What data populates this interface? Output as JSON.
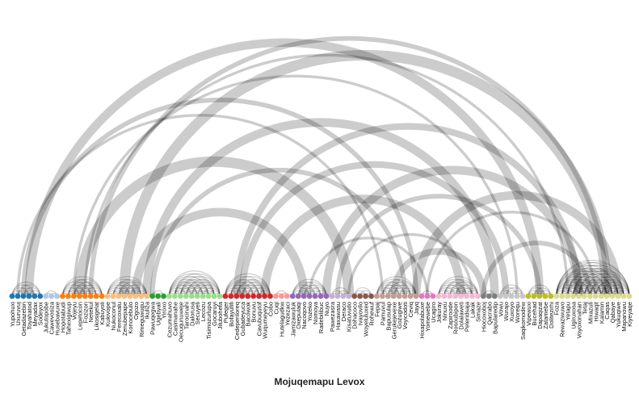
{
  "chart_data": {
    "type": "arc-diagram",
    "title": "Mojuqemapu Levox",
    "groups": [
      {
        "color": "#1f77b4",
        "nodes": [
          "Yupohuxi",
          "Uxuruvuj",
          "Getadazebin",
          "Toyahatod",
          "Meyadax",
          "Sodeyox"
        ]
      },
      {
        "color": "#aec7e8",
        "nodes": [
          "Jukutopobe",
          "Cawevosiza",
          "Husebavuxe"
        ]
      },
      {
        "color": "#ff7f0e",
        "nodes": [
          "Hopotabudi",
          "Tahexigiwup",
          "Vojeyu",
          "Lepetocon",
          "Fozizon",
          "Netekul",
          "Likosigelat",
          "Kabuyoli"
        ]
      },
      {
        "color": "#ffbb78",
        "nodes": [
          "Kukivope",
          "Nukoconul",
          "Ferecoxalu",
          "Zenubepape",
          "Konocebulo",
          "Ogozo",
          "Rimeguwugu",
          "Ikuliza"
        ]
      },
      {
        "color": "#2ca02c",
        "nodes": [
          "Pawuqegwa",
          "Ugebyali",
          "Yiroxo"
        ]
      },
      {
        "color": "#98df8a",
        "nodes": [
          "Cezumahuvo",
          "Casimanahe",
          "Oecuqunuweje",
          "Tarocinahi",
          "Dalorusa",
          "Secuyeli",
          "Lecozu",
          "Tisimozurlupa",
          "Gocaruyi",
          "Jilubohefa"
        ]
      },
      {
        "color": "#d62728",
        "nodes": [
          "Pufeger",
          "Bofayufifi",
          "Cedeperiloreq",
          "Gubadeyuca",
          "Bacowok",
          "Bonuvu",
          "Cavubuqutof",
          "Wuqumeyeyu",
          "Cobo"
        ]
      },
      {
        "color": "#ff9896",
        "nodes": [
          "Cuqi",
          "Hutelagudkw",
          "Yezezaci"
        ]
      },
      {
        "color": "#9467bd",
        "nodes": [
          "Jamizawuluk",
          "Oxepulaqi",
          "Nacoqovo",
          "Yozeko",
          "Nomoya",
          "Radebilibuc",
          "Nuyo"
        ]
      },
      {
        "color": "#c5b0d5",
        "nodes": [
          "Pawezasra",
          "Haxawasu",
          "Deraco",
          "Kisatuvudo"
        ]
      },
      {
        "color": "#8c564b",
        "nodes": [
          "Dohacoco",
          "Ivayovilo",
          "Woyeluluxed",
          "Rohewuf"
        ]
      },
      {
        "color": "#c49c94",
        "nodes": [
          "Fepaj",
          "Pamuvul",
          "Bapusulap",
          "Gerukejevexe",
          "Gozugiwe",
          "Voyicodoti",
          "Ceviq",
          "Jayq"
        ]
      },
      {
        "color": "#e377c2",
        "nodes": [
          "Hixapolabuxe",
          "Yomewebe",
          "Ucagiro"
        ]
      },
      {
        "color": "#f7b6d2",
        "nodes": [
          "Jokuray",
          "Ninuxu",
          "Zapiroode",
          "Rosoubipon",
          "Dolalaweti",
          "Peleridsaja",
          "Lakak",
          "Simaze"
        ]
      },
      {
        "color": "#7f7f7f",
        "nodes": [
          "Hiocoxoboj",
          "Qacrabo",
          "Bapularedip"
        ]
      },
      {
        "color": "#c7c7c7",
        "nodes": [
          "Vowu",
          "Wurajo",
          "Xuxoyo",
          "Worequ",
          "Saqikomodew"
        ]
      },
      {
        "color": "#bcbd22",
        "nodes": [
          "Vipewuxi",
          "Bucehad",
          "Dapaqizat",
          "Zatamebe",
          "Dolitezirhi"
        ]
      },
      {
        "color": "#dbdb8d",
        "nodes": [
          "Foza",
          "Rewaziwuwo",
          "Yetapu",
          "Ugiruxosa",
          "Voyoxonahan",
          "Tetaj",
          "Mixazuli",
          "Hiwaqit",
          "Kalamin",
          "Caqas",
          "Qabaye",
          "Yukuqiwe",
          "Mapanowu",
          "Kiyeyaqe"
        ]
      }
    ],
    "links": [
      [
        0,
        141,
        7
      ],
      [
        3,
        94,
        4
      ],
      [
        5,
        120,
        3
      ],
      [
        2,
        72,
        2
      ],
      [
        1,
        66,
        1
      ],
      [
        8,
        116,
        5
      ],
      [
        10,
        130,
        2
      ],
      [
        12,
        60,
        5
      ],
      [
        14,
        106,
        2
      ],
      [
        11,
        90,
        1
      ],
      [
        13,
        99,
        1
      ],
      [
        20,
        106,
        5
      ],
      [
        24,
        86,
        4
      ],
      [
        18,
        131,
        2
      ],
      [
        22,
        52,
        4
      ],
      [
        25,
        70,
        2
      ],
      [
        38,
        112,
        4
      ],
      [
        45,
        80,
        4
      ],
      [
        41,
        88,
        3
      ],
      [
        40,
        101,
        3
      ],
      [
        43,
        126,
        1
      ],
      [
        56,
        101,
        4
      ],
      [
        54,
        120,
        3
      ],
      [
        55,
        139,
        2
      ],
      [
        58,
        94,
        2
      ],
      [
        60,
        82,
        1
      ],
      [
        53,
        74,
        1
      ],
      [
        72,
        108,
        4
      ],
      [
        70,
        113,
        3
      ],
      [
        68,
        84,
        3
      ],
      [
        74,
        104,
        1
      ],
      [
        66,
        120,
        1
      ],
      [
        96,
        130,
        4
      ],
      [
        90,
        114,
        2
      ],
      [
        84,
        103,
        2
      ],
      [
        100,
        139,
        3
      ],
      [
        116,
        141,
        3
      ],
      [
        108,
        124,
        1
      ],
      [
        120,
        134,
        1
      ],
      [
        127,
        141,
        1
      ]
    ]
  }
}
